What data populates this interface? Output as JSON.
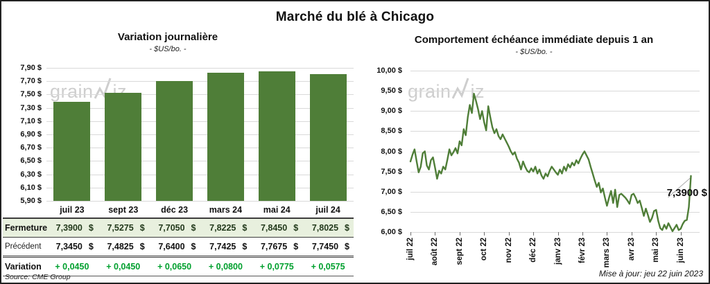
{
  "window": {
    "title": "Marché du blé à Chicago"
  },
  "colors": {
    "accent_green": "#4f7e38",
    "variation_green": "#00a02e",
    "fermeture_row_bg": "#e8f0de",
    "gridline": "#d9d9d9",
    "watermark": "#c9c9c9"
  },
  "watermark": {
    "part1": "grain",
    "part2": "iz",
    "icon": "zigzag-line-chart-icon"
  },
  "chart_data": [
    {
      "type": "bar",
      "title": "Variation journalière",
      "subtitle": "- $US/bo. -",
      "unit": "$US/bo.",
      "categories": [
        "juil 23",
        "sept 23",
        "déc 23",
        "mars 24",
        "mai 24",
        "juil 24"
      ],
      "values": [
        7.39,
        7.5275,
        7.705,
        7.8225,
        7.845,
        7.8025
      ],
      "ylim": [
        5.9,
        7.9
      ],
      "ytick_step": 0.2,
      "ytick_labels": [
        "7,90 $",
        "7,70 $",
        "7,50 $",
        "7,30 $",
        "7,10 $",
        "6,90 $",
        "6,70 $",
        "6,50 $",
        "6,30 $",
        "6,10 $",
        "5,90 $"
      ],
      "grid": true,
      "legend": "none"
    },
    {
      "type": "line",
      "title": "Comportement échéance immédiate depuis 1 an",
      "subtitle": "- $US/bo. -",
      "unit": "$US/bo.",
      "x_tick_labels": [
        "juil 22",
        "août 22",
        "sept 22",
        "oct 22",
        "nov 22",
        "déc 22",
        "janv 23",
        "févr 23",
        "mars 23",
        "avr 23",
        "mai 23",
        "juin 23"
      ],
      "points_per_month": 12,
      "ylim": [
        6.0,
        10.0
      ],
      "ytick_step": 0.5,
      "ytick_labels": [
        "10,00 $",
        "9,50 $",
        "9,00 $",
        "8,50 $",
        "8,00 $",
        "7,50 $",
        "7,00 $",
        "6,50 $",
        "6,00 $"
      ],
      "grid": true,
      "legend": "none",
      "annotation": "7,3900 $",
      "last_value": 7.39,
      "values": [
        7.75,
        7.92,
        8.05,
        7.75,
        7.48,
        7.62,
        7.95,
        8.0,
        7.65,
        7.55,
        7.78,
        7.85,
        7.6,
        7.32,
        7.52,
        7.45,
        7.62,
        7.55,
        7.78,
        8.05,
        7.9,
        7.98,
        8.08,
        7.95,
        8.25,
        8.15,
        8.55,
        8.4,
        8.85,
        9.15,
        8.95,
        9.43,
        9.25,
        9.05,
        8.8,
        9.0,
        8.72,
        8.52,
        9.12,
        8.85,
        8.6,
        8.45,
        8.55,
        8.38,
        8.3,
        8.42,
        8.32,
        8.22,
        8.12,
        8.0,
        7.92,
        7.98,
        7.82,
        7.72,
        7.55,
        7.75,
        7.62,
        7.52,
        7.48,
        7.58,
        7.5,
        7.62,
        7.45,
        7.55,
        7.4,
        7.32,
        7.45,
        7.38,
        7.52,
        7.62,
        7.55,
        7.48,
        7.42,
        7.55,
        7.45,
        7.62,
        7.52,
        7.68,
        7.6,
        7.72,
        7.65,
        7.78,
        7.7,
        7.82,
        7.92,
        8.0,
        7.9,
        7.8,
        7.62,
        7.45,
        7.28,
        7.12,
        7.22,
        6.98,
        7.08,
        6.85,
        6.65,
        6.85,
        7.02,
        6.72,
        7.05,
        6.62,
        6.92,
        6.95,
        6.9,
        6.85,
        6.78,
        6.7,
        6.92,
        6.95,
        6.85,
        6.72,
        6.78,
        6.6,
        6.4,
        6.58,
        6.42,
        6.25,
        6.35,
        6.52,
        6.55,
        6.28,
        6.1,
        6.05,
        6.18,
        6.08,
        6.22,
        6.12,
        6.02,
        6.1,
        6.18,
        6.05,
        6.08,
        6.2,
        6.28,
        6.3,
        6.62,
        7.39
      ]
    }
  ],
  "table": {
    "columns": [
      "juil 23",
      "sept 23",
      "déc 23",
      "mars 24",
      "mai 24",
      "juil 24"
    ],
    "rows": [
      {
        "kind": "fermeture",
        "label": "Fermeture",
        "currency": "$",
        "values": [
          "7,3900",
          "7,5275",
          "7,7050",
          "7,8225",
          "7,8450",
          "7,8025"
        ]
      },
      {
        "kind": "precedent",
        "label": "Précédent",
        "currency": "$",
        "values": [
          "7,3450",
          "7,4825",
          "7,6400",
          "7,7425",
          "7,7675",
          "7,7450"
        ]
      },
      {
        "kind": "variation",
        "label": "Variation",
        "values": [
          "+ 0,0450",
          "+ 0,0450",
          "+ 0,0650",
          "+ 0,0800",
          "+ 0,0775",
          "+ 0,0575"
        ]
      }
    ]
  },
  "footer": {
    "source": "Source: CME Group",
    "updated": "Mise à jour: jeu 22 juin 2023"
  }
}
